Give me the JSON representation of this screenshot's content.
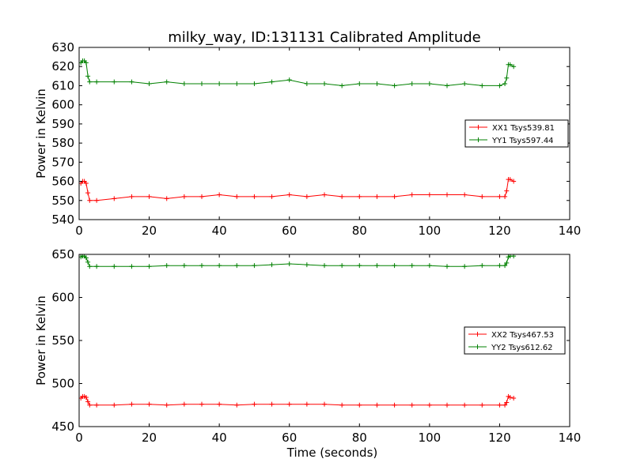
{
  "figure": {
    "title": "milky_way, ID:131131 Calibrated Amplitude"
  },
  "chart_data": [
    {
      "type": "line",
      "title": "milky_way, ID:131131 Calibrated Amplitude",
      "xlabel": "",
      "ylabel": "Power in Kelvin",
      "xlim": [
        0,
        140
      ],
      "ylim": [
        540,
        630
      ],
      "xticks": [
        0,
        20,
        40,
        60,
        80,
        100,
        120,
        140
      ],
      "yticks": [
        540,
        550,
        560,
        570,
        580,
        590,
        600,
        610,
        620,
        630
      ],
      "grid": false,
      "legend_position": "right",
      "series": [
        {
          "name": "XX1 Tsys539.81",
          "color": "#ff0000",
          "x": [
            0.5,
            1,
            1.5,
            2,
            2.5,
            3,
            5,
            10,
            15,
            20,
            25,
            30,
            35,
            40,
            45,
            50,
            55,
            60,
            65,
            70,
            75,
            80,
            85,
            90,
            95,
            100,
            105,
            110,
            115,
            120,
            121.5,
            122,
            122.5,
            123,
            124
          ],
          "values": [
            559,
            560,
            560,
            559,
            554,
            550,
            550,
            551,
            552,
            552,
            551,
            552,
            552,
            553,
            552,
            552,
            552,
            553,
            552,
            553,
            552,
            552,
            552,
            552,
            553,
            553,
            553,
            553,
            552,
            552,
            552,
            555,
            561,
            561,
            560
          ]
        },
        {
          "name": "YY1 Tsys597.44",
          "color": "#008000",
          "x": [
            0.5,
            1,
            1.5,
            2,
            2.5,
            3,
            5,
            10,
            15,
            20,
            25,
            30,
            35,
            40,
            45,
            50,
            55,
            60,
            65,
            70,
            75,
            80,
            85,
            90,
            95,
            100,
            105,
            110,
            115,
            120,
            121.5,
            122,
            122.5,
            123,
            124
          ],
          "values": [
            622,
            623,
            623,
            622,
            615,
            612,
            612,
            612,
            612,
            611,
            612,
            611,
            611,
            611,
            611,
            611,
            612,
            613,
            611,
            611,
            610,
            611,
            611,
            610,
            611,
            611,
            610,
            611,
            610,
            610,
            611,
            614,
            621,
            621,
            620
          ]
        }
      ]
    },
    {
      "type": "line",
      "title": "",
      "xlabel": "Time (seconds)",
      "ylabel": "Power in Kelvin",
      "xlim": [
        0,
        140
      ],
      "ylim": [
        450,
        650
      ],
      "xticks": [
        0,
        20,
        40,
        60,
        80,
        100,
        120,
        140
      ],
      "yticks": [
        450,
        500,
        550,
        600,
        650
      ],
      "grid": false,
      "legend_position": "right",
      "series": [
        {
          "name": "XX2 Tsys467.53",
          "color": "#ff0000",
          "x": [
            0.5,
            1,
            1.5,
            2,
            2.5,
            3,
            5,
            10,
            15,
            20,
            25,
            30,
            35,
            40,
            45,
            50,
            55,
            60,
            65,
            70,
            75,
            80,
            85,
            90,
            95,
            100,
            105,
            110,
            115,
            120,
            121.5,
            122,
            122.5,
            123,
            124
          ],
          "values": [
            483,
            485,
            485,
            484,
            479,
            475,
            475,
            475,
            476,
            476,
            475,
            476,
            476,
            476,
            475,
            476,
            476,
            476,
            476,
            476,
            475,
            475,
            475,
            475,
            475,
            475,
            475,
            475,
            475,
            475,
            475,
            478,
            485,
            484,
            483
          ]
        },
        {
          "name": "YY2 Tsys612.62",
          "color": "#008000",
          "x": [
            0.5,
            1,
            1.5,
            2,
            2.5,
            3,
            5,
            10,
            15,
            20,
            25,
            30,
            35,
            40,
            45,
            50,
            55,
            60,
            65,
            70,
            75,
            80,
            85,
            90,
            95,
            100,
            105,
            110,
            115,
            120,
            121.5,
            122,
            122.5,
            123,
            124
          ],
          "values": [
            647,
            648,
            648,
            646,
            641,
            636,
            636,
            636,
            636,
            636,
            637,
            637,
            637,
            637,
            637,
            637,
            638,
            639,
            638,
            637,
            637,
            637,
            637,
            637,
            637,
            637,
            636,
            636,
            637,
            637,
            637,
            640,
            647,
            648,
            648
          ]
        }
      ]
    }
  ]
}
